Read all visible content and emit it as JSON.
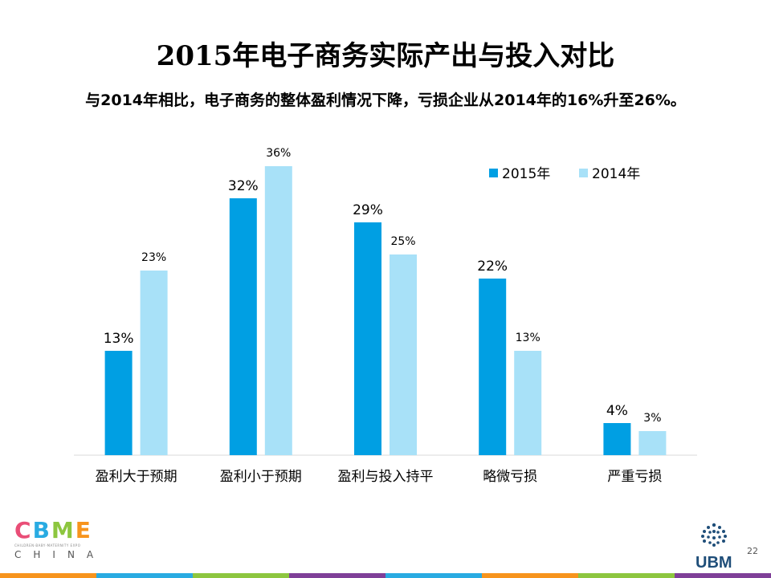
{
  "slide": {
    "title": "2015年电子商务实际产出与投入对比",
    "subtitle": "与2014年相比，电子商务的整体盈利情况下降，亏损企业从2014年的16%升至26%。",
    "page_number": "22"
  },
  "logos": {
    "cbme_letters": [
      "C",
      "B",
      "M",
      "E"
    ],
    "cbme_tagline": "CHILDREN·BABY·MATERNITY EXPO",
    "cbme_china": "CHINA",
    "ubm_text": "UBM"
  },
  "colors": {
    "series_2015": "#009fe3",
    "series_2014": "#a8e1f8",
    "cbme_letters": [
      "#e94e77",
      "#29abe2",
      "#8dc63f",
      "#f7941d"
    ],
    "footer_bar": [
      "#f7941d",
      "#29abe2",
      "#8dc63f",
      "#7f3f98",
      "#29abe2",
      "#f7941d",
      "#8dc63f",
      "#7f3f98"
    ]
  },
  "chart_data": {
    "type": "bar",
    "title": "2015年电子商务实际产出与投入对比",
    "categories": [
      "盈利大于预期",
      "盈利小于预期",
      "盈利与投入持平",
      "略微亏损",
      "严重亏损"
    ],
    "series": [
      {
        "name": "2015年",
        "values": [
          13,
          32,
          29,
          22,
          4
        ],
        "labels": [
          "13%",
          "32%",
          "29%",
          "22%",
          "4%"
        ]
      },
      {
        "name": "2014年",
        "values": [
          23,
          36,
          25,
          13,
          3
        ],
        "labels": [
          "23%",
          "36%",
          "25%",
          "13%",
          "3%"
        ]
      }
    ],
    "unit": "%",
    "ylim": [
      0,
      40
    ],
    "grid": false,
    "legend": "top-right",
    "xlabel": "",
    "ylabel": ""
  }
}
